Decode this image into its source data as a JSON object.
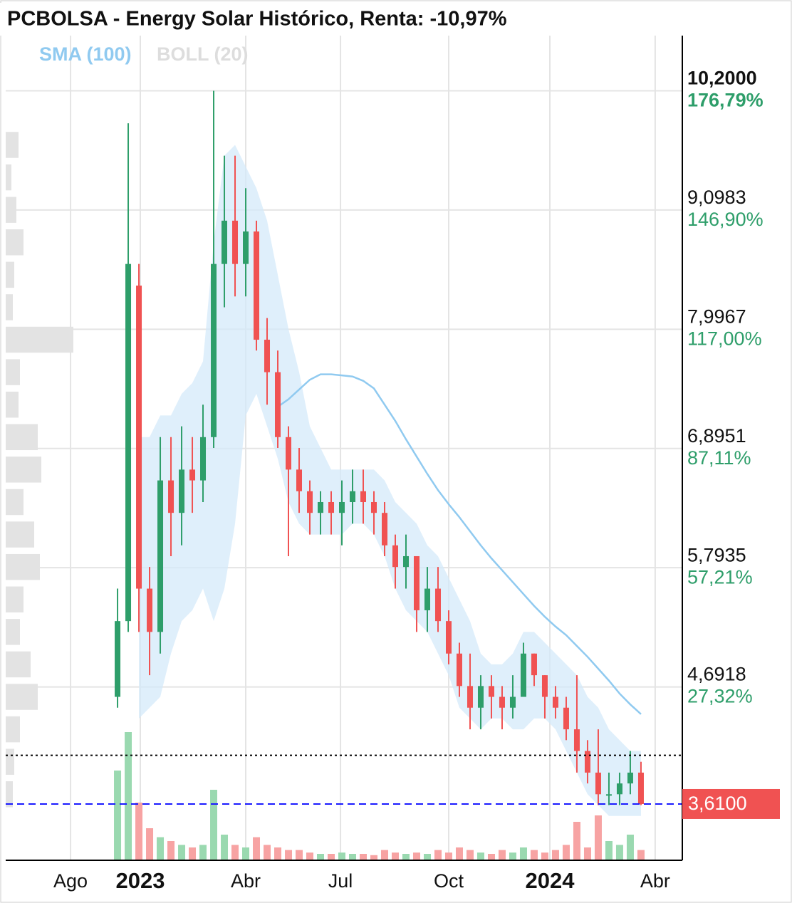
{
  "chart_data": {
    "type": "candlestick",
    "title": "PCBOLSA - Energy Solar Histórico, Renta: -10,97%",
    "categories": [
      null,
      null,
      null,
      null,
      null,
      null,
      null,
      null,
      null,
      null,
      null,
      null,
      null,
      null,
      null,
      null,
      null,
      null,
      null,
      null,
      null,
      null,
      null,
      null,
      null,
      null,
      null,
      null,
      null,
      null,
      null,
      null,
      null,
      null,
      null,
      null,
      null,
      null,
      null,
      null,
      null,
      null,
      null,
      null,
      null,
      null,
      null,
      null,
      null,
      null
    ],
    "ohlc": {
      "open": [
        4.6,
        5.3,
        8.4,
        5.6,
        5.2,
        6.6,
        6.3,
        6.7,
        6.6,
        7.0,
        8.6,
        9.0,
        8.6,
        8.9,
        7.9,
        7.6,
        7.0,
        6.7,
        6.5,
        6.3,
        6.4,
        6.3,
        6.4,
        6.5,
        6.4,
        6.3,
        6.0,
        5.8,
        5.9,
        5.4,
        5.6,
        5.3,
        5.0,
        4.7,
        4.5,
        4.7,
        4.6,
        4.5,
        4.6,
        5.0,
        4.8,
        4.6,
        4.5,
        4.3,
        4.1,
        3.9,
        3.7,
        3.7,
        3.8,
        3.9
      ],
      "high": [
        5.6,
        9.9,
        8.6,
        5.8,
        7.0,
        7.0,
        7.1,
        7.0,
        7.3,
        10.2,
        9.6,
        9.6,
        9.3,
        9.0,
        8.1,
        7.8,
        7.1,
        6.9,
        6.6,
        6.5,
        6.5,
        6.6,
        6.7,
        6.7,
        6.5,
        6.4,
        6.1,
        6.1,
        5.9,
        5.8,
        5.8,
        5.4,
        5.1,
        5.0,
        4.8,
        4.8,
        4.7,
        4.8,
        5.1,
        5.0,
        4.8,
        4.7,
        4.6,
        4.8,
        4.2,
        4.3,
        3.9,
        3.9,
        4.1,
        4.0
      ],
      "low": [
        4.5,
        5.2,
        5.2,
        4.8,
        5.0,
        5.9,
        6.0,
        6.3,
        6.4,
        6.9,
        8.2,
        8.3,
        8.3,
        7.8,
        7.3,
        6.9,
        5.9,
        6.3,
        6.1,
        6.1,
        6.1,
        6.0,
        6.2,
        6.2,
        6.1,
        5.9,
        5.6,
        5.6,
        5.2,
        5.2,
        5.2,
        4.9,
        4.6,
        4.3,
        4.3,
        4.4,
        4.3,
        4.4,
        4.6,
        4.7,
        4.4,
        4.4,
        4.2,
        3.9,
        3.8,
        3.6,
        3.6,
        3.6,
        3.7,
        3.6
      ],
      "close": [
        5.3,
        8.6,
        5.6,
        5.2,
        6.6,
        6.3,
        6.7,
        6.6,
        7.0,
        8.6,
        9.0,
        8.6,
        8.9,
        7.9,
        7.6,
        7.0,
        6.7,
        6.5,
        6.3,
        6.4,
        6.3,
        6.4,
        6.5,
        6.4,
        6.3,
        6.0,
        5.8,
        5.9,
        5.4,
        5.6,
        5.3,
        5.0,
        4.7,
        4.5,
        4.7,
        4.6,
        4.5,
        4.6,
        5.0,
        4.8,
        4.6,
        4.5,
        4.3,
        4.1,
        3.9,
        3.7,
        3.7,
        3.8,
        3.9,
        3.61
      ],
      "up_color": "#2e9e6a",
      "down_color": "#f05252"
    },
    "sma": {
      "name": "SMA (100)",
      "color": "#90caf0",
      "values": [
        null,
        null,
        null,
        null,
        null,
        null,
        null,
        null,
        null,
        null,
        null,
        null,
        null,
        null,
        null,
        7.28,
        7.35,
        7.44,
        7.53,
        7.58,
        7.58,
        7.57,
        7.56,
        7.52,
        7.45,
        7.3,
        7.15,
        6.98,
        6.82,
        6.66,
        6.51,
        6.38,
        6.26,
        6.13,
        6.0,
        5.88,
        5.77,
        5.66,
        5.55,
        5.44,
        5.34,
        5.25,
        5.17,
        5.07,
        4.97,
        4.86,
        4.75,
        4.63,
        4.53,
        4.44
      ]
    },
    "bollinger": {
      "name": "BOLL (20)",
      "color": "#dddddd",
      "fill": "#d4e9f9",
      "upper": [
        null,
        null,
        7.0,
        7.0,
        7.2,
        7.2,
        7.4,
        7.5,
        7.7,
        8.8,
        9.6,
        9.7,
        9.5,
        9.3,
        9.0,
        8.5,
        8.0,
        7.6,
        7.1,
        6.9,
        6.7,
        6.7,
        6.7,
        6.7,
        6.7,
        6.6,
        6.4,
        6.3,
        6.2,
        6.0,
        5.9,
        5.7,
        5.5,
        5.3,
        5.0,
        4.9,
        4.9,
        5.0,
        5.2,
        5.2,
        5.1,
        5.0,
        4.9,
        4.8,
        4.6,
        4.5,
        4.3,
        4.2,
        4.1,
        4.1
      ],
      "lower": [
        null,
        null,
        4.4,
        4.5,
        4.6,
        5.0,
        5.3,
        5.4,
        5.6,
        5.3,
        5.6,
        6.2,
        7.2,
        7.4,
        7.1,
        6.8,
        6.4,
        6.2,
        6.1,
        6.1,
        6.1,
        6.1,
        6.2,
        6.2,
        6.1,
        5.9,
        5.6,
        5.4,
        5.3,
        5.2,
        5.0,
        4.8,
        4.5,
        4.4,
        4.3,
        4.4,
        4.4,
        4.3,
        4.3,
        4.4,
        4.4,
        4.3,
        4.1,
        3.9,
        3.7,
        3.6,
        3.5,
        3.5,
        3.5,
        3.5
      ]
    },
    "volume": {
      "values": [
        70,
        100,
        45,
        25,
        18,
        15,
        12,
        10,
        12,
        55,
        20,
        12,
        10,
        18,
        12,
        10,
        8,
        8,
        6,
        5,
        5,
        6,
        5,
        5,
        4,
        8,
        6,
        5,
        6,
        5,
        8,
        6,
        10,
        8,
        6,
        5,
        8,
        6,
        10,
        8,
        6,
        8,
        12,
        30,
        10,
        35,
        15,
        12,
        20,
        8
      ],
      "vlim": [
        0,
        100
      ],
      "up_color": "#9ad9b0",
      "down_color": "#f7a3a3"
    },
    "volume_profile": {
      "levels": [
        3.7,
        4.0,
        4.3,
        4.6,
        4.9,
        5.2,
        5.5,
        5.8,
        6.1,
        6.4,
        6.7,
        7.0,
        7.3,
        7.6,
        7.9,
        8.2,
        8.5,
        8.8,
        9.1,
        9.4,
        9.7
      ],
      "values": [
        10,
        12,
        20,
        45,
        35,
        20,
        25,
        48,
        40,
        25,
        50,
        45,
        18,
        20,
        95,
        10,
        12,
        25,
        15,
        8,
        18
      ],
      "lim": [
        0,
        100
      ],
      "color": "#e3e3e3"
    },
    "reference_line": {
      "value": 4.06,
      "color": "#000000"
    },
    "last_price": {
      "value": 3.61,
      "label": "3,6100",
      "line_color": "#1a1aff",
      "box_color": "#f05252"
    },
    "ylim": [
      3.09,
      10.71
    ],
    "yticks": [
      {
        "value": 10.2,
        "label": "10,2000"
      },
      {
        "value": 9.0983,
        "label": "9,0983"
      },
      {
        "value": 7.9967,
        "label": "7,9967"
      },
      {
        "value": 6.8951,
        "label": "6,8951"
      },
      {
        "value": 5.7935,
        "label": "5,7935"
      },
      {
        "value": 4.6918,
        "label": "4,6918"
      }
    ],
    "ytick_changes": [
      "176,79%",
      "146,90%",
      "117,00%",
      "87,11%",
      "57,21%",
      "27,32%"
    ],
    "xlim": [
      -10.47,
      52.87
    ],
    "xticks": [
      {
        "value": -4.4,
        "label": "Ago"
      },
      {
        "value": 2.13,
        "label": "2023"
      },
      {
        "value": 12,
        "label": "Abr"
      },
      {
        "value": 20.87,
        "label": "Jul"
      },
      {
        "value": 31,
        "label": "Oct"
      },
      {
        "value": 40.47,
        "label": "2024"
      },
      {
        "value": 50.33,
        "label": "Abr"
      }
    ],
    "grid": true
  }
}
